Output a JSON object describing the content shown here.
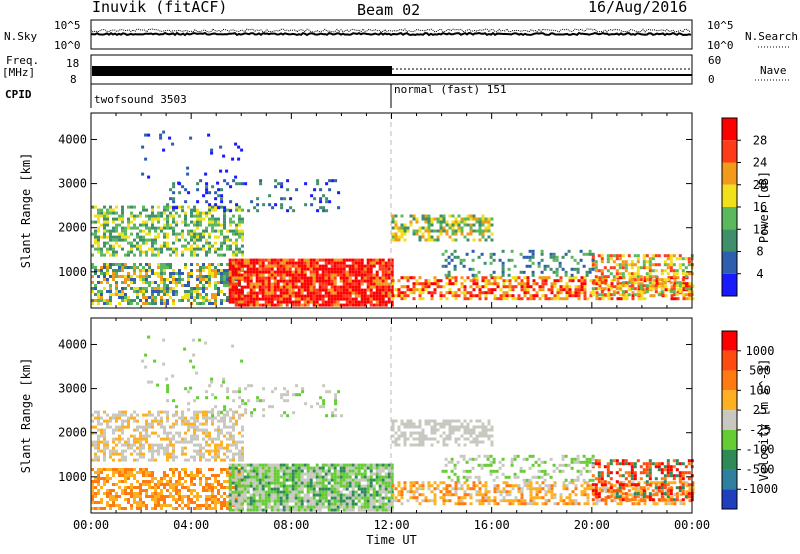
{
  "header": {
    "station": "Inuvik (fitACF)",
    "beam": "Beam 02",
    "date": "16/Aug/2016"
  },
  "left_labels": {
    "nsky": "N.Sky",
    "nsky_hi": "10^5",
    "nsky_lo": "10^0",
    "freq": "Freq.",
    "freq_unit": "[MHz]",
    "freq_hi": "18",
    "freq_lo": "8",
    "cpid": "CPID"
  },
  "right_labels": {
    "nsearch": "N.Search",
    "nsearch_hi": "10^5",
    "nsearch_lo": "10^0",
    "nave": "Nave",
    "nave_hi": "60",
    "nave_lo": "0"
  },
  "cpid_modes": [
    {
      "label": "twofsound 3503",
      "start_hour": 0
    },
    {
      "label": "normal (fast) 151",
      "start_hour": 12
    }
  ],
  "chart_data": [
    {
      "type": "heatmap",
      "quantity": "Power",
      "ylabel": "Slant Range [km]",
      "colorbar_label": "Power [dB]",
      "x_range_hours": [
        0,
        24
      ],
      "y_range_km": [
        180,
        4600
      ],
      "y_ticks": [
        "1000",
        "2000",
        "3000",
        "4000"
      ],
      "colorbar_ticks": [
        "4",
        "8",
        "12",
        "16",
        "20",
        "24",
        "28"
      ],
      "colorbar_range": [
        0,
        32
      ],
      "colors": [
        "#1a1aff",
        "#2d5fae",
        "#3f8f6a",
        "#5cb85c",
        "#f2e01a",
        "#f29a1a",
        "#ff3b1a",
        "#ff0000"
      ]
    },
    {
      "type": "heatmap",
      "quantity": "Velocity",
      "ylabel": "Slant Range [km]",
      "xlabel": "Time UT",
      "colorbar_label": "Velocity [m s^-1]",
      "x_ticks": [
        "00:00",
        "04:00",
        "08:00",
        "12:00",
        "16:00",
        "20:00",
        "00:00"
      ],
      "x_range_hours": [
        0,
        24
      ],
      "y_range_km": [
        180,
        4600
      ],
      "y_ticks": [
        "1000",
        "2000",
        "3000",
        "4000"
      ],
      "colorbar_ticks": [
        "1000",
        "500",
        "100",
        "25",
        "-25",
        "-100",
        "-500",
        "-1000"
      ],
      "colors": [
        "#1f3fbf",
        "#2f7fa0",
        "#2e8b57",
        "#66cc33",
        "#c8c8c0",
        "#ffb020",
        "#ff7a10",
        "#ff4a10",
        "#ff0000"
      ]
    }
  ]
}
